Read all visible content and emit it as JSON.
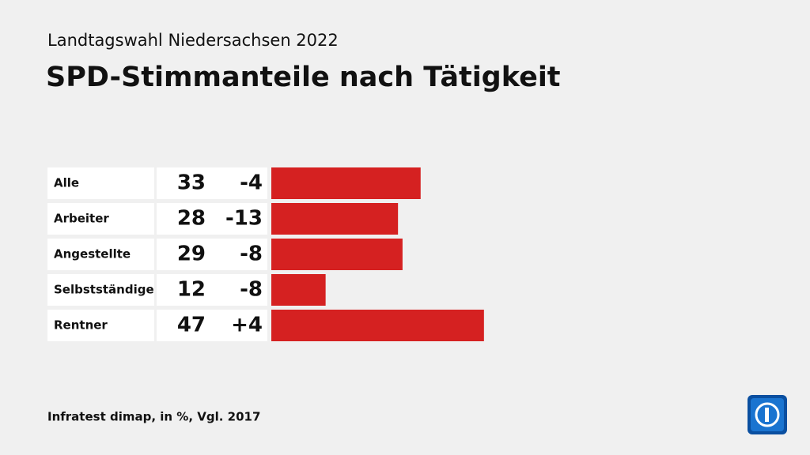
{
  "chart_data": {
    "type": "bar",
    "orientation": "horizontal",
    "subtitle": "Landtagswahl Niedersachsen 2022",
    "title": "SPD-Stimmanteile nach Tätigkeit",
    "categories": [
      "Alle",
      "Arbeiter",
      "Angestellte",
      "Selbstständige",
      "Rentner"
    ],
    "values": [
      33,
      28,
      29,
      12,
      47
    ],
    "changes": [
      -4,
      -13,
      -8,
      -8,
      4
    ],
    "change_labels": [
      "-4",
      "-13",
      "-8",
      "-8",
      "+4"
    ],
    "color": "#d52121",
    "source": "Infratest dimap, in %, Vgl. 2017"
  }
}
